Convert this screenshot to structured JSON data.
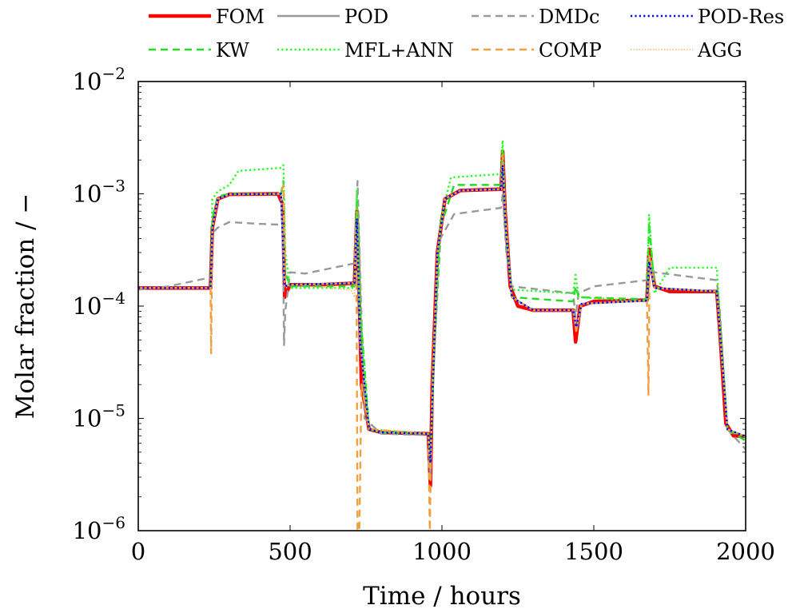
{
  "chart_data": {
    "type": "line",
    "xlabel": "Time / hours",
    "ylabel": "Molar fraction / −",
    "yscale": "log",
    "xlim": [
      0,
      2000
    ],
    "ylim": [
      1e-06,
      0.01
    ],
    "x_ticks": [
      {
        "value": 0,
        "label": "0"
      },
      {
        "value": 500,
        "label": "500"
      },
      {
        "value": 1000,
        "label": "1000"
      },
      {
        "value": 1500,
        "label": "1500"
      },
      {
        "value": 2000,
        "label": "2000"
      }
    ],
    "y_ticks": [
      {
        "value": 1e-06,
        "mantissa": "10",
        "exponent": "−6"
      },
      {
        "value": 1e-05,
        "mantissa": "10",
        "exponent": "−5"
      },
      {
        "value": 0.0001,
        "mantissa": "10",
        "exponent": "−4"
      },
      {
        "value": 0.001,
        "mantissa": "10",
        "exponent": "−3"
      },
      {
        "value": 0.01,
        "mantissa": "10",
        "exponent": "−2"
      }
    ],
    "grid": false,
    "legend_position": "top",
    "series": [
      {
        "name": "FOM",
        "color": "#ff0000",
        "style": "solid-thick",
        "points": [
          [
            0,
            0.000145
          ],
          [
            238,
            0.000145
          ],
          [
            244,
            0.0005
          ],
          [
            262,
            0.0009
          ],
          [
            300,
            0.00099
          ],
          [
            460,
            0.001
          ],
          [
            476,
            0.0008
          ],
          [
            482,
            0.00012
          ],
          [
            490,
            0.000135
          ],
          [
            500,
            0.000155
          ],
          [
            600,
            0.000155
          ],
          [
            712,
            0.00016
          ],
          [
            720,
            0.0007
          ],
          [
            724,
            0.0003
          ],
          [
            735,
            2e-05
          ],
          [
            760,
            8e-06
          ],
          [
            800,
            7.5e-06
          ],
          [
            955,
            7.3e-06
          ],
          [
            962,
            2.5e-06
          ],
          [
            968,
            2e-05
          ],
          [
            985,
            0.0003
          ],
          [
            1010,
            0.0009
          ],
          [
            1060,
            0.00107
          ],
          [
            1195,
            0.0011
          ],
          [
            1200,
            0.0024
          ],
          [
            1208,
            0.0007
          ],
          [
            1225,
            0.00015
          ],
          [
            1250,
            0.0001
          ],
          [
            1300,
            9.2e-05
          ],
          [
            1432,
            9.2e-05
          ],
          [
            1440,
            4.8e-05
          ],
          [
            1455,
            0.0001
          ],
          [
            1500,
            0.00011
          ],
          [
            1675,
            0.000113
          ],
          [
            1682,
            0.00032
          ],
          [
            1700,
            0.00015
          ],
          [
            1750,
            0.000135
          ],
          [
            1905,
            0.000135
          ],
          [
            1915,
            6e-05
          ],
          [
            1935,
            9e-06
          ],
          [
            1960,
            7e-06
          ],
          [
            2000,
            6.9e-06
          ]
        ]
      },
      {
        "name": "POD",
        "color": "#999999",
        "style": "solid",
        "points": [
          [
            0,
            0.000145
          ],
          [
            238,
            0.000145
          ],
          [
            244,
            0.0005
          ],
          [
            262,
            0.0009
          ],
          [
            300,
            0.00099
          ],
          [
            470,
            0.001
          ],
          [
            482,
            0.00015
          ],
          [
            500,
            0.000155
          ],
          [
            712,
            0.00016
          ],
          [
            720,
            0.0006
          ],
          [
            730,
            5e-05
          ],
          [
            760,
            8e-06
          ],
          [
            800,
            7.5e-06
          ],
          [
            955,
            7.3e-06
          ],
          [
            962,
            3e-06
          ],
          [
            970,
            2e-05
          ],
          [
            985,
            0.0003
          ],
          [
            1010,
            0.0009
          ],
          [
            1060,
            0.00107
          ],
          [
            1195,
            0.0011
          ],
          [
            1200,
            0.002
          ],
          [
            1210,
            0.0005
          ],
          [
            1230,
            0.00012
          ],
          [
            1300,
            9.2e-05
          ],
          [
            1432,
            9.2e-05
          ],
          [
            1442,
            6e-05
          ],
          [
            1460,
            0.000105
          ],
          [
            1675,
            0.000112
          ],
          [
            1682,
            0.00028
          ],
          [
            1700,
            0.000145
          ],
          [
            1905,
            0.000135
          ],
          [
            1915,
            6e-05
          ],
          [
            1940,
            8e-06
          ],
          [
            2000,
            6.9e-06
          ]
        ]
      },
      {
        "name": "DMDc",
        "color": "#999999",
        "style": "dashed",
        "points": [
          [
            0,
            0.00014
          ],
          [
            100,
            0.00015
          ],
          [
            238,
            0.00018
          ],
          [
            245,
            0.00045
          ],
          [
            262,
            0.0005
          ],
          [
            300,
            0.00056
          ],
          [
            400,
            0.00054
          ],
          [
            476,
            0.00053
          ],
          [
            480,
            4.5e-05
          ],
          [
            484,
            9e-05
          ],
          [
            500,
            0.0002
          ],
          [
            550,
            0.000195
          ],
          [
            712,
            0.00024
          ],
          [
            722,
            0.0013
          ],
          [
            730,
            0.00022
          ],
          [
            745,
            1e-05
          ],
          [
            800,
            7.3e-06
          ],
          [
            955,
            7.1e-06
          ],
          [
            962,
            4e-06
          ],
          [
            975,
            4e-05
          ],
          [
            995,
            0.0004
          ],
          [
            1040,
            0.00066
          ],
          [
            1195,
            0.00075
          ],
          [
            1200,
            0.001
          ],
          [
            1212,
            0.0003
          ],
          [
            1230,
            0.00015
          ],
          [
            1432,
            0.00013
          ],
          [
            1440,
            8e-05
          ],
          [
            1450,
            0.00013
          ],
          [
            1500,
            0.00015
          ],
          [
            1675,
            0.00017
          ],
          [
            1682,
            0.00023
          ],
          [
            1700,
            0.0002
          ],
          [
            1905,
            0.00017
          ],
          [
            1915,
            9e-05
          ],
          [
            1940,
            8e-06
          ],
          [
            2000,
            5.3e-06
          ]
        ]
      },
      {
        "name": "POD-Res",
        "color": "#0000ff",
        "style": "dotted",
        "points": [
          [
            0,
            0.000145
          ],
          [
            238,
            0.000145
          ],
          [
            244,
            0.0005
          ],
          [
            262,
            0.0009
          ],
          [
            300,
            0.00099
          ],
          [
            470,
            0.001
          ],
          [
            482,
            0.00015
          ],
          [
            500,
            0.000155
          ],
          [
            712,
            0.00016
          ],
          [
            720,
            0.0006
          ],
          [
            730,
            5e-05
          ],
          [
            760,
            8e-06
          ],
          [
            800,
            7.5e-06
          ],
          [
            955,
            7.3e-06
          ],
          [
            962,
            4e-06
          ],
          [
            970,
            2e-05
          ],
          [
            985,
            0.0003
          ],
          [
            1010,
            0.0009
          ],
          [
            1060,
            0.00107
          ],
          [
            1195,
            0.0011
          ],
          [
            1200,
            0.0018
          ],
          [
            1210,
            0.0005
          ],
          [
            1230,
            0.00012
          ],
          [
            1300,
            9.2e-05
          ],
          [
            1432,
            9.2e-05
          ],
          [
            1442,
            6.5e-05
          ],
          [
            1460,
            0.000105
          ],
          [
            1675,
            0.000112
          ],
          [
            1682,
            0.00025
          ],
          [
            1700,
            0.000145
          ],
          [
            1905,
            0.000135
          ],
          [
            1915,
            6e-05
          ],
          [
            1940,
            8e-06
          ],
          [
            2000,
            6.9e-06
          ]
        ]
      },
      {
        "name": "KW",
        "color": "#22dd22",
        "style": "dashed",
        "points": [
          [
            0,
            0.000145
          ],
          [
            238,
            0.000145
          ],
          [
            244,
            0.0006
          ],
          [
            262,
            0.00095
          ],
          [
            300,
            0.001
          ],
          [
            470,
            0.001
          ],
          [
            478,
            0.0013
          ],
          [
            484,
            0.0002
          ],
          [
            500,
            0.00015
          ],
          [
            712,
            0.00015
          ],
          [
            720,
            0.0009
          ],
          [
            730,
            0.0001
          ],
          [
            760,
            8e-06
          ],
          [
            800,
            7.5e-06
          ],
          [
            955,
            7.3e-06
          ],
          [
            962,
            4e-06
          ],
          [
            975,
            5e-05
          ],
          [
            995,
            0.0005
          ],
          [
            1040,
            0.0012
          ],
          [
            1195,
            0.0012
          ],
          [
            1200,
            0.0026
          ],
          [
            1210,
            0.0005
          ],
          [
            1230,
            0.00012
          ],
          [
            1432,
            0.00011
          ],
          [
            1440,
            0.00015
          ],
          [
            1450,
            0.00012
          ],
          [
            1675,
            0.000115
          ],
          [
            1682,
            0.00055
          ],
          [
            1700,
            0.000145
          ],
          [
            1905,
            0.000135
          ],
          [
            1915,
            6e-05
          ],
          [
            1940,
            8e-06
          ],
          [
            2000,
            6.3e-06
          ]
        ]
      },
      {
        "name": "MFL+ANN",
        "color": "#22ff22",
        "style": "dotted",
        "points": [
          [
            0,
            0.000145
          ],
          [
            238,
            0.000145
          ],
          [
            244,
            0.0009
          ],
          [
            262,
            0.00105
          ],
          [
            300,
            0.0012
          ],
          [
            330,
            0.0016
          ],
          [
            470,
            0.0017
          ],
          [
            478,
            0.0018
          ],
          [
            484,
            0.0003
          ],
          [
            500,
            0.000145
          ],
          [
            712,
            0.000145
          ],
          [
            720,
            0.0011
          ],
          [
            730,
            0.0001
          ],
          [
            760,
            8e-06
          ],
          [
            955,
            7.3e-06
          ],
          [
            962,
            4e-06
          ],
          [
            975,
            5e-05
          ],
          [
            995,
            0.0006
          ],
          [
            1030,
            0.0014
          ],
          [
            1195,
            0.0015
          ],
          [
            1200,
            0.003
          ],
          [
            1210,
            0.0005
          ],
          [
            1230,
            0.00014
          ],
          [
            1432,
            0.00013
          ],
          [
            1440,
            0.00019
          ],
          [
            1450,
            0.00012
          ],
          [
            1675,
            0.00011
          ],
          [
            1682,
            0.00065
          ],
          [
            1700,
            0.00013
          ],
          [
            1750,
            0.00022
          ],
          [
            1905,
            0.00022
          ],
          [
            1915,
            8e-05
          ],
          [
            1940,
            8e-06
          ],
          [
            2000,
            6.8e-06
          ]
        ]
      },
      {
        "name": "COMP",
        "color": "#f0a040",
        "style": "dashed",
        "points": [
          [
            0,
            0.000145
          ],
          [
            238,
            0.000145
          ],
          [
            240,
            3.8e-05
          ],
          [
            244,
            0.0005
          ],
          [
            262,
            0.0009
          ],
          [
            300,
            0.00099
          ],
          [
            470,
            0.001
          ],
          [
            478,
            0.0012
          ],
          [
            484,
            0.00015
          ],
          [
            500,
            0.000155
          ],
          [
            712,
            0.00016
          ],
          [
            718,
            0.0005
          ],
          [
            722,
            1e-06
          ],
          [
            728,
            1e-06
          ],
          [
            735,
            2e-05
          ],
          [
            760,
            8e-06
          ],
          [
            955,
            7.3e-06
          ],
          [
            960,
            1e-06
          ],
          [
            968,
            2e-05
          ],
          [
            985,
            0.0003
          ],
          [
            1010,
            0.0009
          ],
          [
            1060,
            0.00107
          ],
          [
            1195,
            0.0011
          ],
          [
            1200,
            0.0022
          ],
          [
            1208,
            0.0007
          ],
          [
            1230,
            0.00012
          ],
          [
            1300,
            9.2e-05
          ],
          [
            1432,
            9.2e-05
          ],
          [
            1442,
            6e-05
          ],
          [
            1460,
            0.000105
          ],
          [
            1675,
            0.000112
          ],
          [
            1680,
            1.6e-05
          ],
          [
            1684,
            0.00028
          ],
          [
            1700,
            0.000145
          ],
          [
            1905,
            0.000135
          ],
          [
            1915,
            6e-05
          ],
          [
            1940,
            8e-06
          ],
          [
            2000,
            6.9e-06
          ]
        ]
      },
      {
        "name": "AGG",
        "color": "#f0a040",
        "style": "fine-dotted",
        "points": [
          [
            0,
            0.000145
          ],
          [
            238,
            0.000145
          ],
          [
            244,
            0.0005
          ],
          [
            262,
            0.0009
          ],
          [
            300,
            0.00099
          ],
          [
            470,
            0.001
          ],
          [
            482,
            0.00015
          ],
          [
            500,
            0.000155
          ],
          [
            700,
            0.00014
          ],
          [
            712,
            0.00012
          ],
          [
            720,
            0.0008
          ],
          [
            730,
            5e-05
          ],
          [
            760,
            8e-06
          ],
          [
            800,
            7.5e-06
          ],
          [
            955,
            7.3e-06
          ],
          [
            962,
            4e-06
          ],
          [
            970,
            2e-05
          ],
          [
            985,
            0.0003
          ],
          [
            1010,
            0.0009
          ],
          [
            1060,
            0.00107
          ],
          [
            1195,
            0.0011
          ],
          [
            1200,
            0.002
          ],
          [
            1210,
            0.0005
          ],
          [
            1230,
            0.00012
          ],
          [
            1300,
            9.2e-05
          ],
          [
            1432,
            9.2e-05
          ],
          [
            1442,
            6e-05
          ],
          [
            1460,
            0.000105
          ],
          [
            1675,
            0.000112
          ],
          [
            1682,
            0.00028
          ],
          [
            1700,
            0.000145
          ],
          [
            1905,
            0.000135
          ],
          [
            1915,
            6e-05
          ],
          [
            1940,
            8e-06
          ],
          [
            2000,
            6.9e-06
          ]
        ]
      }
    ]
  }
}
